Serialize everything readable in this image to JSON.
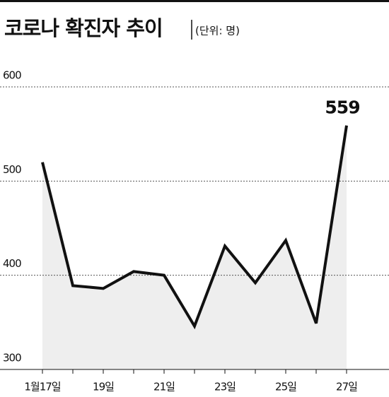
{
  "chart_data": {
    "type": "line",
    "title": "코로나 확진자 추이",
    "subtitle": "(단위: 명)",
    "categories": [
      "1월17일",
      null,
      "19일",
      null,
      "21일",
      null,
      "23일",
      null,
      "25일",
      null,
      "27일"
    ],
    "values": [
      520,
      389,
      386,
      404,
      400,
      346,
      431,
      392,
      437,
      349,
      559
    ],
    "color": "#111111",
    "area_color": "#eeeeee",
    "ylim": [
      300,
      600
    ],
    "yticks": [
      300,
      400,
      500,
      600
    ],
    "grid": true
  }
}
